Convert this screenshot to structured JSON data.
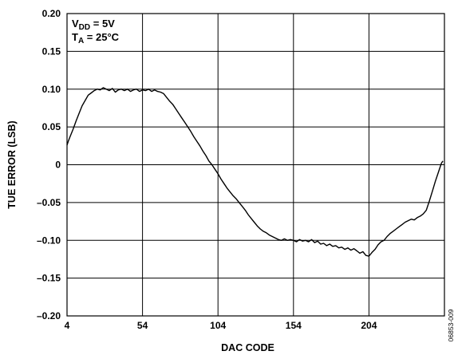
{
  "chart_data": {
    "type": "line",
    "title": "",
    "xlabel": "DAC CODE",
    "ylabel": "TUE ERROR (LSB)",
    "xlim": [
      4,
      254
    ],
    "ylim": [
      -0.2,
      0.2
    ],
    "x_ticks": [
      4,
      54,
      104,
      154,
      204
    ],
    "x_tick_labels": [
      "4",
      "54",
      "104",
      "154",
      "204"
    ],
    "y_ticks": [
      0.2,
      0.15,
      0.1,
      0.05,
      0,
      -0.05,
      -0.1,
      -0.15,
      -0.2
    ],
    "y_tick_labels": [
      "0.20",
      "0.15",
      "0.10",
      "0.05",
      "0",
      "–0.05",
      "–0.10",
      "–0.15",
      "–0.20"
    ],
    "grid": true,
    "legend": "none",
    "annotation": {
      "vdd_main": "V",
      "vdd_sub": "DD",
      "vdd_value": " = 5V",
      "ta_main": "T",
      "ta_sub": "A",
      "ta_value": " = 25°C"
    },
    "figure_id": "06853-009",
    "series": [
      {
        "color": "#000000",
        "x": [
          4,
          5,
          6,
          8,
          10,
          12,
          14,
          16,
          18,
          20,
          22,
          24,
          26,
          28,
          30,
          32,
          34,
          36,
          38,
          40,
          42,
          44,
          46,
          48,
          50,
          52,
          54,
          56,
          58,
          60,
          62,
          64,
          66,
          68,
          70,
          72,
          74,
          76,
          78,
          80,
          82,
          84,
          86,
          88,
          90,
          92,
          94,
          96,
          98,
          100,
          102,
          104,
          106,
          108,
          110,
          112,
          114,
          116,
          118,
          120,
          122,
          124,
          126,
          128,
          130,
          132,
          134,
          136,
          138,
          140,
          142,
          144,
          146,
          148,
          150,
          152,
          154,
          156,
          158,
          160,
          162,
          164,
          166,
          168,
          170,
          172,
          174,
          176,
          178,
          180,
          182,
          184,
          186,
          188,
          190,
          192,
          194,
          196,
          198,
          200,
          202,
          204,
          206,
          208,
          210,
          212,
          214,
          216,
          218,
          220,
          222,
          224,
          226,
          228,
          230,
          232,
          234,
          236,
          238,
          240,
          242,
          244,
          246,
          248,
          250,
          252,
          253
        ],
        "values": [
          0.026,
          0.032,
          0.037,
          0.047,
          0.058,
          0.068,
          0.078,
          0.085,
          0.092,
          0.095,
          0.098,
          0.1,
          0.099,
          0.102,
          0.1,
          0.098,
          0.101,
          0.096,
          0.099,
          0.1,
          0.098,
          0.1,
          0.097,
          0.099,
          0.1,
          0.097,
          0.099,
          0.098,
          0.1,
          0.097,
          0.099,
          0.097,
          0.096,
          0.094,
          0.089,
          0.084,
          0.08,
          0.074,
          0.068,
          0.062,
          0.056,
          0.05,
          0.044,
          0.037,
          0.031,
          0.025,
          0.018,
          0.012,
          0.005,
          0.0,
          -0.006,
          -0.012,
          -0.019,
          -0.025,
          -0.031,
          -0.036,
          -0.041,
          -0.045,
          -0.05,
          -0.055,
          -0.06,
          -0.066,
          -0.071,
          -0.076,
          -0.081,
          -0.085,
          -0.088,
          -0.09,
          -0.093,
          -0.095,
          -0.097,
          -0.099,
          -0.1,
          -0.098,
          -0.1,
          -0.099,
          -0.1,
          -0.102,
          -0.099,
          -0.101,
          -0.1,
          -0.102,
          -0.099,
          -0.103,
          -0.101,
          -0.105,
          -0.104,
          -0.107,
          -0.105,
          -0.108,
          -0.107,
          -0.11,
          -0.109,
          -0.112,
          -0.11,
          -0.113,
          -0.111,
          -0.114,
          -0.117,
          -0.115,
          -0.12,
          -0.121,
          -0.116,
          -0.112,
          -0.106,
          -0.102,
          -0.1,
          -0.095,
          -0.091,
          -0.088,
          -0.085,
          -0.082,
          -0.079,
          -0.076,
          -0.074,
          -0.072,
          -0.073,
          -0.07,
          -0.068,
          -0.065,
          -0.06,
          -0.048,
          -0.035,
          -0.022,
          -0.01,
          0.002,
          0.005
        ]
      }
    ]
  }
}
